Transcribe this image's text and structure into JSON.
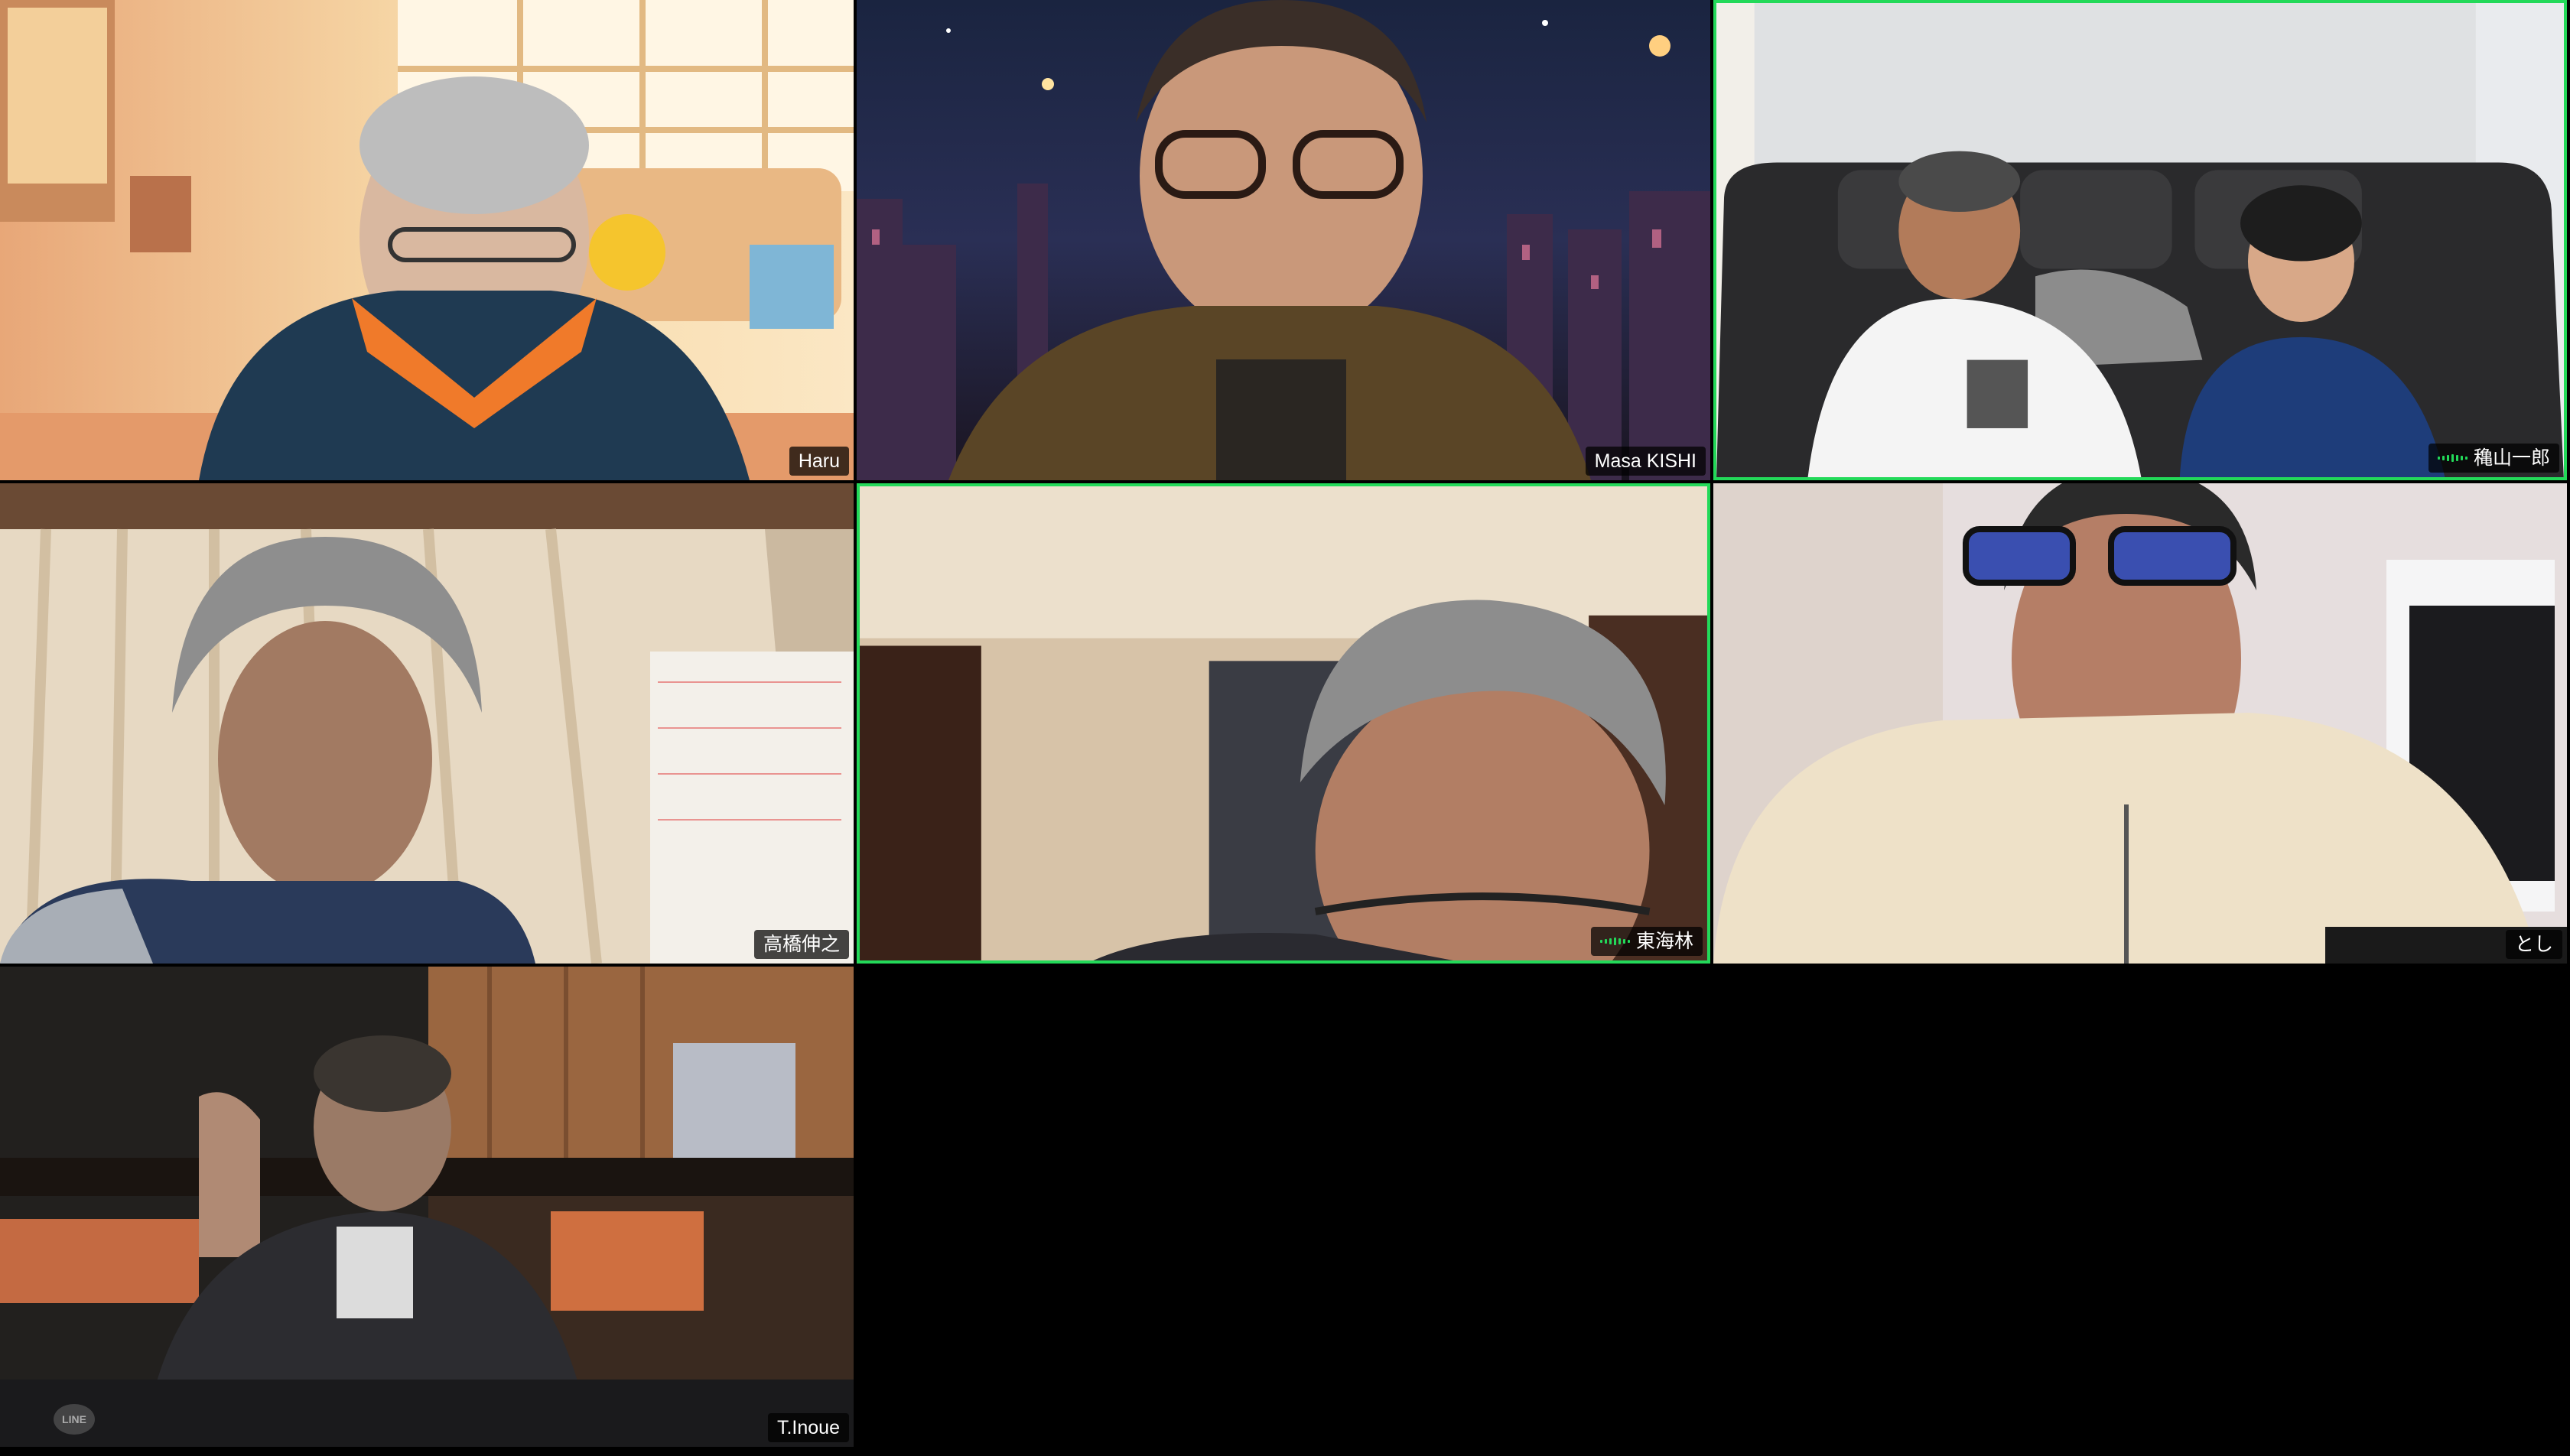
{
  "meeting": {
    "layout": "gallery-view",
    "speaking_color": "#23d959"
  },
  "participants": [
    {
      "name": "Haru",
      "speaking": false,
      "audio_active": false
    },
    {
      "name": "Masa KISHI",
      "speaking": false,
      "audio_active": false
    },
    {
      "name": "穐山一郎",
      "speaking": true,
      "audio_active": true
    },
    {
      "name": "高橋伸之",
      "speaking": false,
      "audio_active": false
    },
    {
      "name": "東海林",
      "speaking": true,
      "audio_active": true
    },
    {
      "name": "とし",
      "speaking": false,
      "audio_active": false
    },
    {
      "name": "T.Inoue",
      "speaking": false,
      "audio_active": false
    }
  ],
  "watermark": {
    "text": "LINE"
  }
}
